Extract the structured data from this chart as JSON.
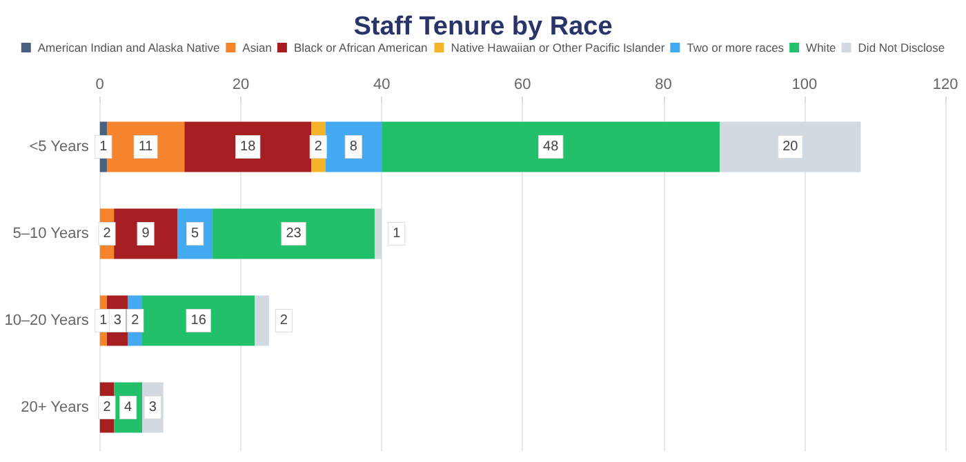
{
  "chart_data": {
    "type": "bar",
    "title": "Staff Tenure by Race",
    "orientation": "horizontal",
    "stacked": true,
    "data_labels": true,
    "grid": "x",
    "legend": "top",
    "categories": [
      "<5 Years",
      "5–10 Years",
      "10–20 Years",
      "20+ Years"
    ],
    "xlim": [
      0,
      120
    ],
    "xticks": [
      0,
      20,
      40,
      60,
      80,
      100,
      120
    ],
    "series": [
      {
        "name": "American Indian and Alaska Native",
        "color": "#4a6080",
        "values": [
          1,
          null,
          null,
          null
        ]
      },
      {
        "name": "Asian",
        "color": "#f5842c",
        "values": [
          11,
          2,
          1,
          null
        ]
      },
      {
        "name": "Black or African American",
        "color": "#a51e22",
        "values": [
          18,
          9,
          3,
          2
        ]
      },
      {
        "name": "Native Hawaiian or Other Pacific Islander",
        "color": "#f5b52a",
        "values": [
          2,
          null,
          null,
          null
        ]
      },
      {
        "name": "Two or more races",
        "color": "#43a9f0",
        "values": [
          8,
          5,
          2,
          null
        ]
      },
      {
        "name": "White",
        "color": "#22c06b",
        "values": [
          48,
          23,
          16,
          4
        ]
      },
      {
        "name": "Did Not Disclose",
        "color": "#d2d9e0",
        "values": [
          20,
          1,
          2,
          3
        ]
      }
    ]
  }
}
